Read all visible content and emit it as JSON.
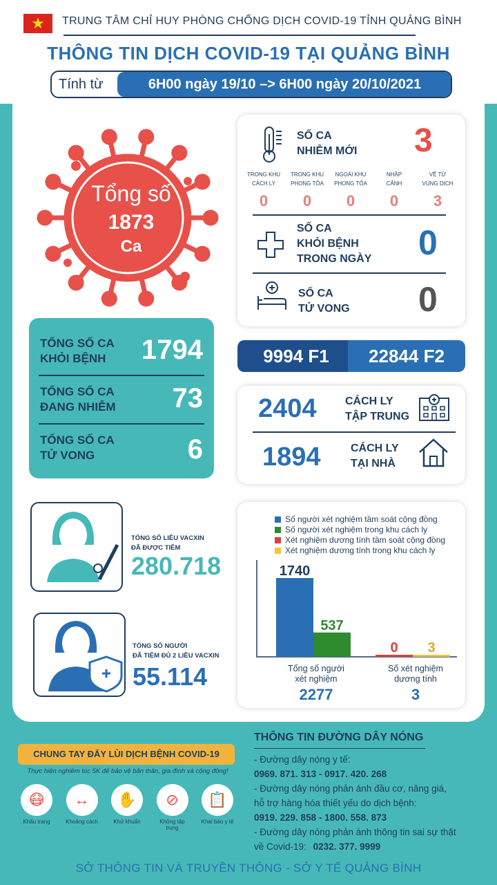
{
  "header": {
    "org": "TRUNG TÂM CHỈ HUY PHÒNG CHỐNG DỊCH COVID-19 TỈNH QUẢNG BÌNH",
    "title": "THÔNG TIN DỊCH COVID-19 TẠI QUẢNG BÌNH",
    "period_label": "Tính từ",
    "period_value": "6H00 ngày 19/10 –> 6H00 ngày 20/10/2021"
  },
  "total": {
    "line1": "Tổng số",
    "value": "1873",
    "unit": "Ca"
  },
  "totals_box": [
    {
      "label1": "TỔNG SỐ CA",
      "label2": "KHỎI BỆNH",
      "value": "1794"
    },
    {
      "label1": "TỔNG SỐ CA",
      "label2": "ĐANG NHIỄM",
      "value": "73"
    },
    {
      "label1": "TỔNG SỐ CA",
      "label2": "TỬ VONG",
      "value": "6"
    }
  ],
  "new_cases": {
    "label1": "SỐ CA",
    "label2": "NHIỄM MỚI",
    "value": "3",
    "breakdown": [
      {
        "label1": "TRONG KHU",
        "label2": "CÁCH LY",
        "value": "0"
      },
      {
        "label1": "TRONG KHU",
        "label2": "PHONG TỎA",
        "value": "0"
      },
      {
        "label1": "NGOÀI KHU",
        "label2": "PHONG TỎA",
        "value": "0"
      },
      {
        "label1": "NHẬP",
        "label2": "CẢNH",
        "value": "0"
      },
      {
        "label1": "VỀ TỪ",
        "label2": "VÙNG DỊCH",
        "value": "3"
      }
    ]
  },
  "recovered_today": {
    "label1": "SỐ CA",
    "label2": "KHỎI BỆNH",
    "label3": "TRONG NGÀY",
    "value": "0",
    "color": "#2a6fb3"
  },
  "deaths_today": {
    "label1": "SỐ CA",
    "label2": "TỬ VONG",
    "value": "0",
    "color": "#555555"
  },
  "contacts": {
    "f1_value": "9994",
    "f1_label": "F1",
    "f2_value": "22844",
    "f2_label": "F2"
  },
  "isolation": [
    {
      "value": "2404",
      "label1": "CÁCH LY",
      "label2": "TẬP TRUNG",
      "icon": "hospital-icon"
    },
    {
      "value": "1894",
      "label1": "CÁCH LY",
      "label2": "TẠI NHÀ",
      "icon": "house-icon"
    }
  ],
  "vaccine": {
    "doses_label1": "TỔNG SỐ LIỀU VACXIN",
    "doses_label2": "ĐÃ ĐƯỢC TIÊM",
    "doses_value": "280.718",
    "doses_color": "#47b8b8",
    "full_label1": "TỔNG SỐ NGƯỜI",
    "full_label2": "ĐÃ TIÊM ĐỦ 2 LIỀU VACXIN",
    "full_value": "55.114",
    "full_color": "#2a6fb3"
  },
  "chart_data": {
    "type": "bar",
    "legend": [
      {
        "name": "Số người xét nghiệm tầm soát cộng đồng",
        "color": "#2a6fb3"
      },
      {
        "name": "Số người xét nghiệm trong khu cách ly",
        "color": "#2e8b2e"
      },
      {
        "name": "Xét nghiệm dương tính tầm soát cộng đồng",
        "color": "#d94040"
      },
      {
        "name": "Xét nghiệm dương tính trong khu cách ly",
        "color": "#f2c53d"
      }
    ],
    "groups": [
      {
        "label1": "Tổng số người",
        "label2": "xét nghiệm",
        "total": "2277",
        "bars": [
          {
            "value": 1740,
            "label": "1740",
            "color": "#2a6fb3",
            "label_color": "#1f3d5c"
          },
          {
            "value": 537,
            "label": "537",
            "color": "#2e8b2e",
            "label_color": "#2e8b2e"
          }
        ]
      },
      {
        "label1": "Số xét nghiệm",
        "label2": "dương tính",
        "total": "3",
        "bars": [
          {
            "value": 0,
            "label": "0",
            "color": "#d94040",
            "label_color": "#d94040"
          },
          {
            "value": 3,
            "label": "3",
            "color": "#f2c53d",
            "label_color": "#e0a52c"
          }
        ]
      }
    ],
    "ymax": 1740
  },
  "campaign": {
    "title": "CHUNG TAY ĐẨY LÙI DỊCH BỆNH COVID-19",
    "subtitle": "Thực hiện nghiêm túc 5K để bảo vệ bản thân, gia đình và cộng đồng!",
    "items": [
      {
        "label": "Khẩu trang",
        "icon": "mask-icon"
      },
      {
        "label": "Khoảng cách",
        "icon": "distance-icon"
      },
      {
        "label": "Khử khuẩn",
        "icon": "handwash-icon"
      },
      {
        "label": "Không tập trung",
        "icon": "no-gathering-icon"
      },
      {
        "label": "Khai báo y tế",
        "icon": "medical-declaration-icon"
      }
    ]
  },
  "hotline": {
    "title": "THÔNG TIN ĐƯỜNG DÂY NÓNG",
    "l1": "- Đường dây nóng y tế:",
    "l2": "0969. 871. 313   -  0917. 420. 268",
    "l3": "- Đường dây nóng phản ánh đầu cơ, nâng giá,",
    "l4": "hỗ trợ hàng hóa thiết yếu do dịch bệnh:",
    "l5": "0919. 229. 858   -  1800. 558. 873",
    "l6": "- Đường dây nóng phản ánh thông tin sai sự thật",
    "l7_prefix": "về Covid-19:",
    "l7_value": "0232. 377. 9999"
  },
  "footer": "SỞ THÔNG TIN VÀ TRUYỀN THÔNG - SỞ Y TẾ QUẢNG BÌNH"
}
